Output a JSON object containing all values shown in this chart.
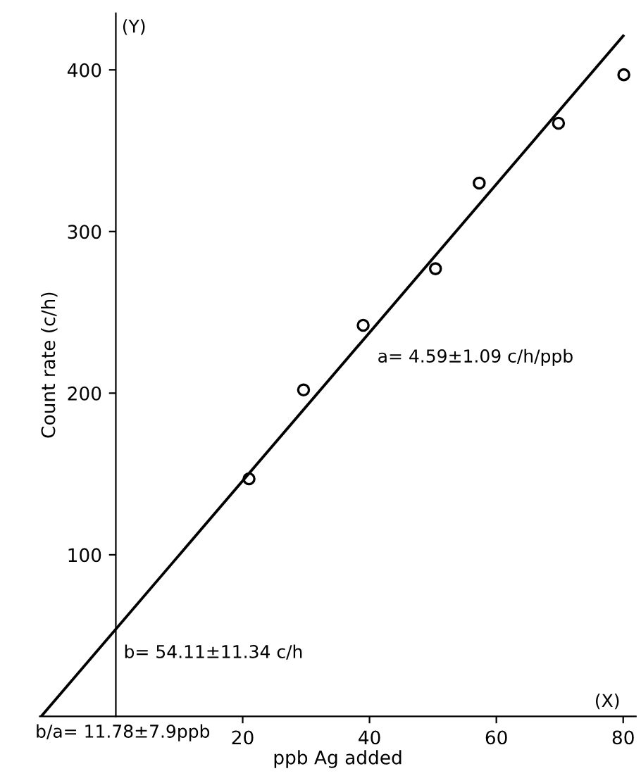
{
  "chart_data": {
    "type": "scatter",
    "xlabel": "ppb Ag added",
    "ylabel": "Count rate (c/h)",
    "series": [
      {
        "color": "#000000",
        "marker": "circle",
        "x": [
          21.0,
          29.6,
          39.0,
          50.4,
          57.3,
          69.8,
          80.1
        ],
        "values": [
          147,
          202,
          242,
          277,
          330,
          367,
          397
        ]
      },
      {
        "type": "line",
        "color": "#000000",
        "marker": "none",
        "line_style": "solid",
        "x": [
          -11.78,
          80
        ],
        "values": [
          0,
          421
        ]
      }
    ],
    "xlim": [
      -12,
      82
    ],
    "ylim": [
      0,
      435
    ],
    "xticks": [
      20,
      40,
      60,
      80
    ],
    "yticks": [
      100,
      200,
      300,
      400
    ],
    "grid": false,
    "legend": false,
    "annotations": [
      "(Y)",
      "(X)",
      {
        "text": "a= 4.59±1.09 c/h/ppb",
        "x": 40,
        "y": 237
      },
      {
        "text": "b= 54.11±11.34 c/h",
        "x": 0,
        "y": 54.11
      },
      {
        "text": "b/a= 11.78±7.9ppb",
        "x": -11.78,
        "y": 0
      }
    ]
  }
}
